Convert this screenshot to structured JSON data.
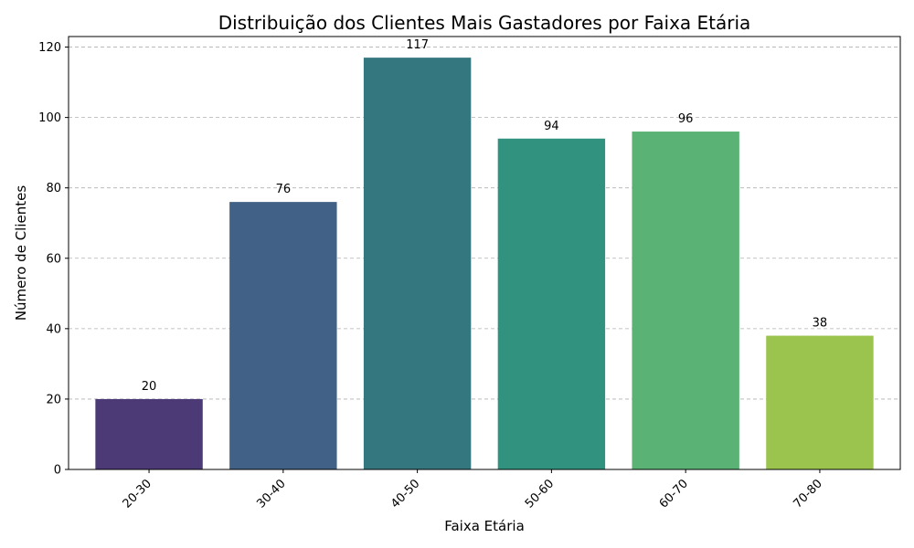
{
  "chart_data": {
    "type": "bar",
    "title": "Distribuição dos Clientes Mais Gastadores por Faixa Etária",
    "xlabel": "Faixa Etária",
    "ylabel": "Número de Clientes",
    "categories": [
      "20-30",
      "30-40",
      "40-50",
      "50-60",
      "60-70",
      "70-80"
    ],
    "values": [
      20,
      76,
      117,
      94,
      96,
      38
    ],
    "colors": [
      "#4b3a75",
      "#416186",
      "#35777f",
      "#31937f",
      "#5ab275",
      "#9bc44f"
    ],
    "ylim": [
      0,
      123
    ],
    "yticks": [
      0,
      20,
      40,
      60,
      80,
      100,
      120
    ],
    "grid": "y-dashed",
    "legend": "none"
  }
}
